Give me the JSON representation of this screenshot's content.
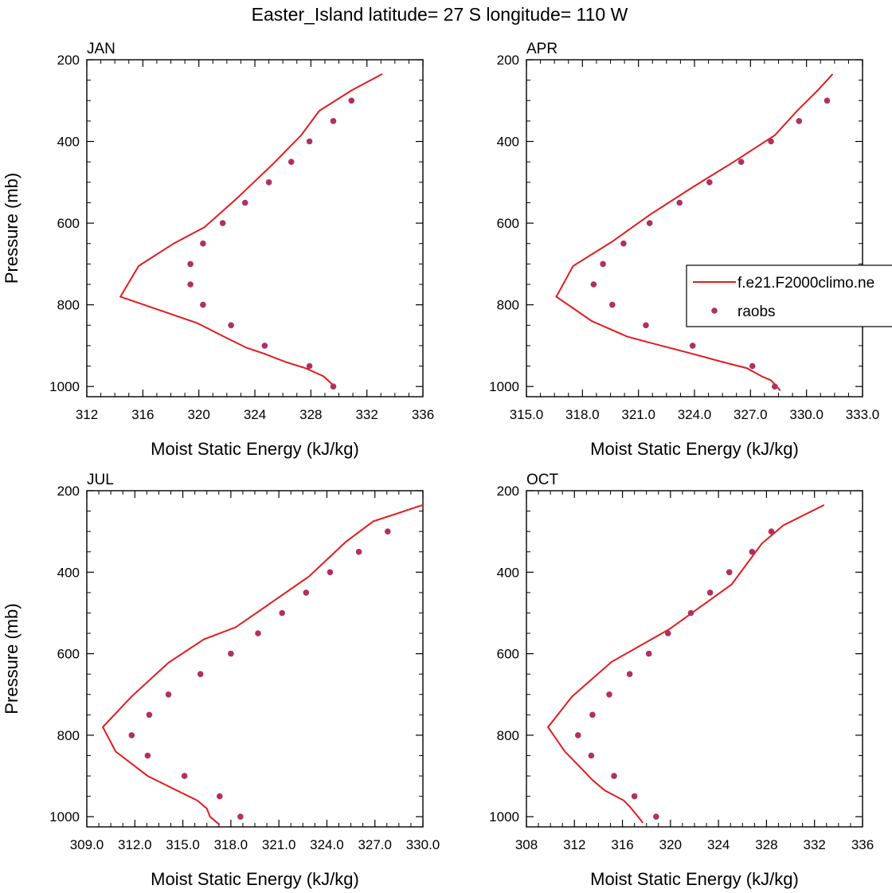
{
  "title": "Easter_Island  latitude= 27 S longitude= 110 W",
  "colors": {
    "model": "#e41a1c",
    "obs": "#b03060"
  },
  "legend": {
    "model_label": "f.e21.F2000climo.ne",
    "obs_label": "raobs",
    "placement": "right of APR panel"
  },
  "chart_data": [
    {
      "type": "line",
      "title": "JAN",
      "xlabel": "Moist Static Energy (kJ/kg)",
      "ylabel": "Pressure (mb)",
      "xlim": [
        312,
        336
      ],
      "ylim": [
        1025,
        200
      ],
      "xticks": [
        "312",
        "316",
        "320",
        "324",
        "328",
        "332",
        "336"
      ],
      "yticks": [
        "200",
        "400",
        "600",
        "800",
        "1000"
      ],
      "series": [
        {
          "name": "f.e21.F2000climo.ne",
          "kind": "line",
          "points": [
            [
              329.7,
              1000
            ],
            [
              328.9,
              975
            ],
            [
              327.6,
              955
            ],
            [
              326.2,
              940
            ],
            [
              324.7,
              920
            ],
            [
              323.4,
              905
            ],
            [
              321.8,
              878
            ],
            [
              319.9,
              845
            ],
            [
              314.4,
              780
            ],
            [
              315.7,
              705
            ],
            [
              318.2,
              650
            ],
            [
              320.4,
              610
            ],
            [
              322.7,
              540
            ],
            [
              325.3,
              455
            ],
            [
              327.3,
              385
            ],
            [
              328.6,
              325
            ],
            [
              330.9,
              275
            ],
            [
              333.1,
              235
            ]
          ]
        },
        {
          "name": "raobs",
          "kind": "scatter",
          "points": [
            [
              329.6,
              1000
            ],
            [
              327.9,
              950
            ],
            [
              324.7,
              900
            ],
            [
              322.3,
              850
            ],
            [
              320.3,
              800
            ],
            [
              319.4,
              750
            ],
            [
              319.4,
              700
            ],
            [
              320.3,
              650
            ],
            [
              321.7,
              600
            ],
            [
              323.3,
              550
            ],
            [
              325.0,
              500
            ],
            [
              326.6,
              450
            ],
            [
              327.9,
              400
            ],
            [
              329.6,
              350
            ],
            [
              330.9,
              300
            ]
          ]
        }
      ]
    },
    {
      "type": "line",
      "title": "APR",
      "xlabel": "Moist Static Energy (kJ/kg)",
      "ylabel": "",
      "xlim": [
        315,
        333
      ],
      "ylim": [
        1025,
        200
      ],
      "xticks": [
        "315.0",
        "318.0",
        "321.0",
        "324.0",
        "327.0",
        "330.0",
        "333.0"
      ],
      "yticks": [
        "200",
        "400",
        "600",
        "800",
        "1000"
      ],
      "series": [
        {
          "name": "f.e21.F2000climo.ne",
          "kind": "line",
          "points": [
            [
              328.6,
              1010
            ],
            [
              328.1,
              985
            ],
            [
              327.6,
              975
            ],
            [
              326.8,
              955
            ],
            [
              325.5,
              940
            ],
            [
              323.9,
              920
            ],
            [
              321.8,
              895
            ],
            [
              320.4,
              878
            ],
            [
              318.5,
              840
            ],
            [
              316.6,
              780
            ],
            [
              317.5,
              705
            ],
            [
              319.6,
              645
            ],
            [
              321.6,
              580
            ],
            [
              323.8,
              515
            ],
            [
              326.1,
              450
            ],
            [
              328.3,
              385
            ],
            [
              329.5,
              325
            ],
            [
              330.6,
              275
            ],
            [
              331.4,
              235
            ]
          ]
        },
        {
          "name": "raobs",
          "kind": "scatter",
          "points": [
            [
              328.3,
              1000
            ],
            [
              327.1,
              950
            ],
            [
              323.9,
              900
            ],
            [
              321.4,
              850
            ],
            [
              319.6,
              800
            ],
            [
              318.6,
              750
            ],
            [
              319.1,
              700
            ],
            [
              320.2,
              650
            ],
            [
              321.6,
              600
            ],
            [
              323.2,
              550
            ],
            [
              324.8,
              500
            ],
            [
              326.5,
              450
            ],
            [
              328.1,
              400
            ],
            [
              329.6,
              350
            ],
            [
              331.1,
              300
            ]
          ]
        }
      ]
    },
    {
      "type": "line",
      "title": "JUL",
      "xlabel": "Moist Static Energy (kJ/kg)",
      "ylabel": "Pressure (mb)",
      "xlim": [
        309,
        330
      ],
      "ylim": [
        1025,
        200
      ],
      "xticks": [
        "309.0",
        "312.0",
        "315.0",
        "318.0",
        "321.0",
        "324.0",
        "327.0",
        "330.0"
      ],
      "yticks": [
        "200",
        "400",
        "600",
        "800",
        "1000"
      ],
      "series": [
        {
          "name": "f.e21.F2000climo.ne",
          "kind": "line",
          "points": [
            [
              317.3,
              1020
            ],
            [
              316.7,
              1000
            ],
            [
              316.5,
              980
            ],
            [
              315.9,
              960
            ],
            [
              314.6,
              935
            ],
            [
              312.8,
              900
            ],
            [
              310.8,
              840
            ],
            [
              310.0,
              780
            ],
            [
              311.8,
              705
            ],
            [
              314.1,
              622
            ],
            [
              316.3,
              565
            ],
            [
              318.3,
              535
            ],
            [
              320.7,
              470
            ],
            [
              322.9,
              410
            ],
            [
              325.2,
              325
            ],
            [
              326.9,
              275
            ],
            [
              330.0,
              235
            ]
          ]
        },
        {
          "name": "raobs",
          "kind": "scatter",
          "points": [
            [
              318.6,
              1000
            ],
            [
              317.3,
              950
            ],
            [
              315.1,
              900
            ],
            [
              312.8,
              850
            ],
            [
              311.8,
              800
            ],
            [
              312.9,
              750
            ],
            [
              314.1,
              700
            ],
            [
              316.1,
              650
            ],
            [
              318.0,
              600
            ],
            [
              319.7,
              550
            ],
            [
              321.2,
              500
            ],
            [
              322.7,
              450
            ],
            [
              324.2,
              400
            ],
            [
              326.0,
              350
            ],
            [
              327.8,
              300
            ]
          ]
        }
      ]
    },
    {
      "type": "line",
      "title": "OCT",
      "xlabel": "Moist Static Energy (kJ/kg)",
      "ylabel": "",
      "xlim": [
        308,
        336
      ],
      "ylim": [
        1025,
        200
      ],
      "xticks": [
        "308",
        "312",
        "316",
        "320",
        "324",
        "328",
        "332",
        "336"
      ],
      "yticks": [
        "200",
        "400",
        "600",
        "800",
        "1000"
      ],
      "series": [
        {
          "name": "f.e21.F2000climo.ne",
          "kind": "line",
          "points": [
            [
              317.7,
              1015
            ],
            [
              317.3,
              1000
            ],
            [
              316.6,
              975
            ],
            [
              316.1,
              960
            ],
            [
              314.5,
              935
            ],
            [
              313.5,
              910
            ],
            [
              312.6,
              882
            ],
            [
              311.2,
              840
            ],
            [
              309.8,
              780
            ],
            [
              311.8,
              705
            ],
            [
              315.1,
              620
            ],
            [
              319.9,
              540
            ],
            [
              325.1,
              430
            ],
            [
              327.6,
              330
            ],
            [
              329.4,
              285
            ],
            [
              332.8,
              235
            ]
          ]
        },
        {
          "name": "raobs",
          "kind": "scatter",
          "points": [
            [
              318.8,
              1000
            ],
            [
              317.0,
              950
            ],
            [
              315.3,
              900
            ],
            [
              313.4,
              850
            ],
            [
              312.3,
              800
            ],
            [
              313.5,
              750
            ],
            [
              314.9,
              700
            ],
            [
              316.6,
              650
            ],
            [
              318.2,
              600
            ],
            [
              319.8,
              550
            ],
            [
              321.7,
              500
            ],
            [
              323.3,
              450
            ],
            [
              324.9,
              400
            ],
            [
              326.8,
              350
            ],
            [
              328.4,
              300
            ]
          ]
        }
      ]
    }
  ]
}
